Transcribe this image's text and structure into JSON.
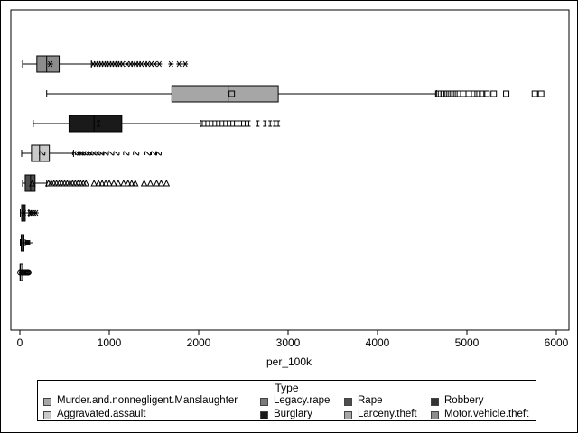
{
  "chart_data": {
    "type": "boxplot",
    "orientation": "horizontal",
    "xlabel": "per_100k",
    "xlim": [
      0,
      6000
    ],
    "xticks": [
      0,
      1000,
      2000,
      3000,
      4000,
      5000,
      6000
    ],
    "xtick_labels": [
      "0",
      "1000",
      "2000",
      "3000",
      "4000",
      "5000",
      "6000"
    ],
    "grid": false,
    "legend": {
      "title": "Type",
      "placement": "bottom",
      "entries": [
        {
          "label": "Murder.and.nonnegligent.Manslaughter",
          "color": "#a6a6a6"
        },
        {
          "label": "Legacy.rape",
          "color": "#7a7a7a"
        },
        {
          "label": "Rape",
          "color": "#4d4d4d"
        },
        {
          "label": "Robbery",
          "color": "#333333"
        },
        {
          "label": "Aggravated.assault",
          "color": "#c8c8c8"
        },
        {
          "label": "Burglary",
          "color": "#1a1a1a"
        },
        {
          "label": "Larceny.theft",
          "color": "#a6a6a6"
        },
        {
          "label": "Motor.vehicle.theft",
          "color": "#8c8c8c"
        }
      ]
    },
    "series": [
      {
        "color": "#8c8c8c",
        "marker": "asterisk",
        "whisker_low": 30,
        "q1": 190,
        "median": 300,
        "mean": 340,
        "q3": 440,
        "whisker_high": 800,
        "outliers": [
          820,
          850,
          880,
          910,
          940,
          970,
          1000,
          1030,
          1060,
          1090,
          1120,
          1150,
          1200,
          1240,
          1270,
          1300,
          1330,
          1360,
          1400,
          1430,
          1470,
          1510,
          1560,
          1690,
          1780,
          1850
        ]
      },
      {
        "color": "#a6a6a6",
        "marker": "square",
        "whisker_low": 300,
        "q1": 1700,
        "median": 2330,
        "mean": 2370,
        "q3": 2890,
        "whisker_high": 4660,
        "outliers": [
          4680,
          4710,
          4740,
          4780,
          4820,
          4860,
          4900,
          4960,
          5020,
          5080,
          5120,
          5170,
          5220,
          5300,
          5440,
          5760,
          5830
        ]
      },
      {
        "color": "#1a1a1a",
        "marker": "I",
        "whisker_low": 150,
        "q1": 550,
        "median": 830,
        "mean": 880,
        "q3": 1140,
        "whisker_high": 2020,
        "outliers": [
          2040,
          2080,
          2120,
          2160,
          2200,
          2240,
          2280,
          2320,
          2360,
          2400,
          2440,
          2480,
          2520,
          2560,
          2660,
          2740,
          2800,
          2850,
          2890
        ]
      },
      {
        "color": "#c8c8c8",
        "marker": "tilde",
        "whisker_low": 20,
        "q1": 130,
        "median": 220,
        "mean": 250,
        "q3": 330,
        "whisker_high": 600,
        "outliers": [
          620,
          650,
          680,
          700,
          730,
          760,
          790,
          830,
          870,
          910,
          960,
          1020,
          1080,
          1190,
          1300,
          1430,
          1500,
          1550
        ]
      },
      {
        "color": "#4d4d4d",
        "marker": "triangle",
        "whisker_low": 30,
        "q1": 60,
        "median": 120,
        "mean": 140,
        "q3": 170,
        "whisker_high": 300,
        "outliers": [
          320,
          350,
          380,
          410,
          440,
          470,
          500,
          530,
          560,
          590,
          620,
          650,
          680,
          710,
          740,
          830,
          880,
          920,
          960,
          1000,
          1050,
          1100,
          1160,
          1210,
          1250,
          1290,
          1390,
          1460,
          1530,
          1580,
          1640
        ]
      },
      {
        "color": "#333333",
        "marker": "asterisk",
        "whisker_low": 5,
        "q1": 20,
        "median": 40,
        "mean": 45,
        "q3": 60,
        "whisker_high": 100,
        "outliers": [
          110,
          125,
          140,
          160,
          180
        ]
      },
      {
        "color": "#7a7a7a",
        "marker": "plus",
        "whisker_low": 5,
        "q1": 15,
        "median": 30,
        "mean": 32,
        "q3": 40,
        "whisker_high": 60,
        "outliers": [
          70,
          80,
          90,
          100,
          110
        ]
      },
      {
        "color": "#a6a6a6",
        "marker": "circle",
        "whisker_low": 0,
        "q1": 2,
        "median": 5,
        "mean": 6,
        "q3": 8,
        "whisker_high": 20,
        "outliers": [
          25,
          35,
          45,
          55,
          65,
          75,
          85,
          95
        ]
      }
    ]
  }
}
